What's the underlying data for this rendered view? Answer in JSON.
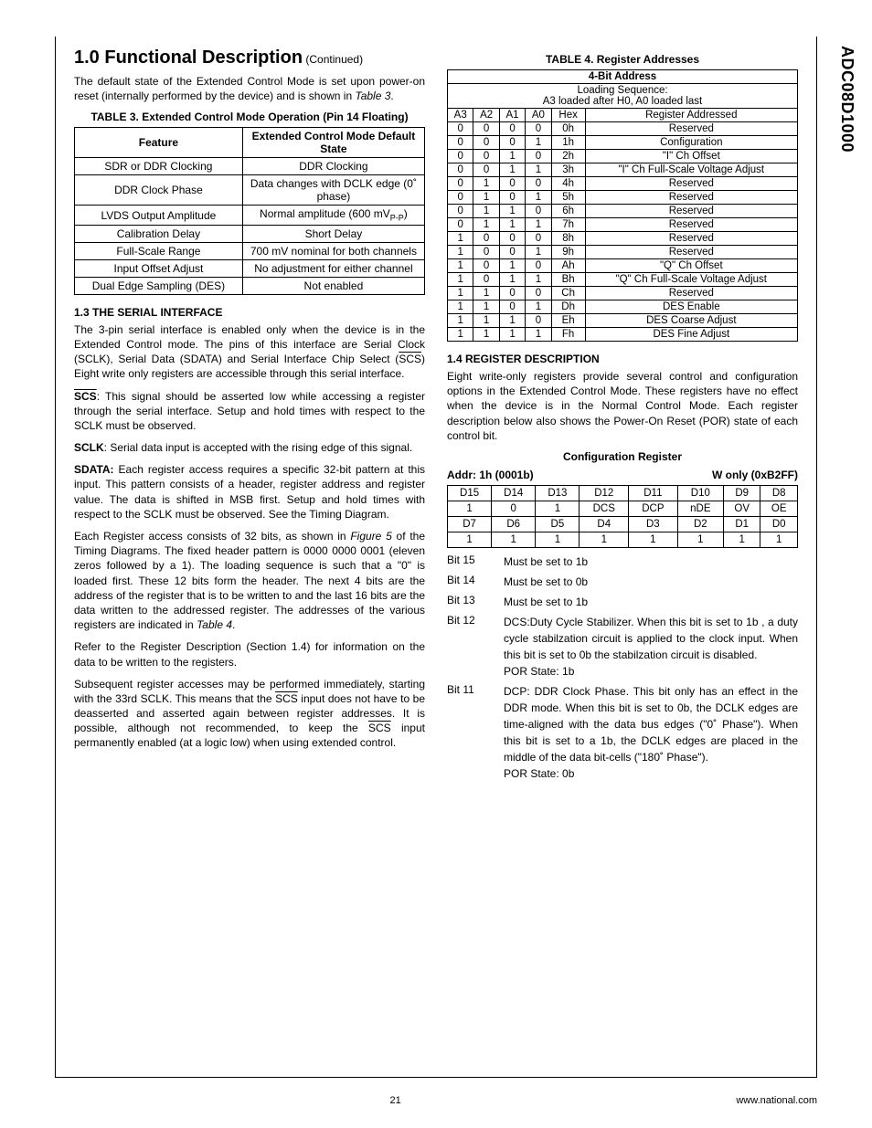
{
  "side_label": "ADC08D1000",
  "section": {
    "number_title": "1.0 Functional Description",
    "continued": "(Continued)"
  },
  "intro_para": "The default state of the Extended Control Mode is set upon power-on reset (internally performed by the device) and is shown in ",
  "intro_ref": "Table 3",
  "intro_end": ".",
  "table3": {
    "caption": "TABLE 3. Extended Control Mode Operation (Pin 14 Floating)",
    "head_feature": "Feature",
    "head_default": "Extended Control Mode Default State",
    "rows": [
      {
        "f": "SDR or DDR Clocking",
        "v": "DDR Clocking"
      },
      {
        "f": "DDR Clock Phase",
        "v": "Data changes with DCLK edge (0˚ phase)"
      },
      {
        "f": "LVDS Output Amplitude",
        "v": "Normal amplitude (600 mV"
      },
      {
        "f_lvds_suffix": "P-P",
        "f_lvds_end": ")"
      },
      {
        "f": "Calibration Delay",
        "v": "Short Delay"
      },
      {
        "f": "Full-Scale Range",
        "v": "700 mV nominal for both channels"
      },
      {
        "f": "Input Offset Adjust",
        "v": "No adjustment for either channel"
      },
      {
        "f": "Dual Edge Sampling (DES)",
        "v": "Not enabled"
      }
    ]
  },
  "sec13": {
    "title": "1.3 THE SERIAL INTERFACE",
    "p1a": "The 3-pin serial interface is enabled only when the device is in the Extended Control mode. The pins of this interface are Serial Clock (SCLK), Serial Data (SDATA) and Serial Interface Chip Select (",
    "scs": "SCS",
    "p1b": ") Eight write only registers are accessible through this serial interface.",
    "p2a_bold": "SCS",
    "p2a": ": This signal should be asserted low while accessing a register through the serial interface. Setup and hold times with respect to the SCLK must be observed.",
    "p3_bold": "SCLK",
    "p3": ": Serial data input is accepted with the rising edge of this signal.",
    "p4_bold": "SDATA:",
    "p4": " Each register access requires a specific 32-bit pattern at this input. This pattern consists of a header, register address and register value. The data is shifted in MSB first. Setup and hold times with respect to the SCLK must be observed. See the Timing Diagram.",
    "p5a": "Each Register access consists of 32 bits, as shown in ",
    "p5_ref": "Figure 5",
    "p5b": " of the Timing Diagrams. The fixed header pattern is 0000 0000 0001 (eleven zeros followed by a 1). The loading sequence is such that a \"0\" is loaded first. These 12 bits form the header. The next 4 bits are the address of the register that is to be written to and the last 16 bits are the data written to the addressed register. The addresses of the various registers are indicated in ",
    "p5_ref2": "Table 4",
    "p5c": ".",
    "p6": "Refer to the Register Description (Section 1.4) for information on the data to be written to the registers.",
    "p7a": "Subsequent register accesses may be performed immediately, starting with the 33rd SCLK. This means that the ",
    "p7b": " input does not have to be deasserted and asserted again between register addresses. It is possible, although not recommended, to keep the ",
    "p7c": " input permanently enabled (at a logic low) when using extended control."
  },
  "table4": {
    "caption": "TABLE 4. Register Addresses",
    "head_4bit": "4-Bit Address",
    "loading1": "Loading Sequence:",
    "loading2": "A3 loaded after H0, A0 loaded last",
    "cols": [
      "A3",
      "A2",
      "A1",
      "A0",
      "Hex",
      "Register Addressed"
    ],
    "rows": [
      [
        "0",
        "0",
        "0",
        "0",
        "0h",
        "Reserved"
      ],
      [
        "0",
        "0",
        "0",
        "1",
        "1h",
        "Configuration"
      ],
      [
        "0",
        "0",
        "1",
        "0",
        "2h",
        "\"I\" Ch Offset"
      ],
      [
        "0",
        "0",
        "1",
        "1",
        "3h",
        "\"I\" Ch Full-Scale Voltage Adjust"
      ],
      [
        "0",
        "1",
        "0",
        "0",
        "4h",
        "Reserved"
      ],
      [
        "0",
        "1",
        "0",
        "1",
        "5h",
        "Reserved"
      ],
      [
        "0",
        "1",
        "1",
        "0",
        "6h",
        "Reserved"
      ],
      [
        "0",
        "1",
        "1",
        "1",
        "7h",
        "Reserved"
      ],
      [
        "1",
        "0",
        "0",
        "0",
        "8h",
        "Reserved"
      ],
      [
        "1",
        "0",
        "0",
        "1",
        "9h",
        "Reserved"
      ],
      [
        "1",
        "0",
        "1",
        "0",
        "Ah",
        "\"Q\" Ch Offset"
      ],
      [
        "1",
        "0",
        "1",
        "1",
        "Bh",
        "\"Q\" Ch Full-Scale Voltage Adjust"
      ],
      [
        "1",
        "1",
        "0",
        "0",
        "Ch",
        "Reserved"
      ],
      [
        "1",
        "1",
        "0",
        "1",
        "Dh",
        "DES Enable"
      ],
      [
        "1",
        "1",
        "1",
        "0",
        "Eh",
        "DES Coarse Adjust"
      ],
      [
        "1",
        "1",
        "1",
        "1",
        "Fh",
        "DES Fine Adjust"
      ]
    ]
  },
  "sec14": {
    "title": "1.4 REGISTER DESCRIPTION",
    "p1": "Eight write-only registers provide several control and configuration options in the Extended Control Mode. These registers have no effect when the device is in the Normal Control Mode. Each register description below also shows the Power-On Reset (POR) state of each control bit."
  },
  "cfg": {
    "title": "Configuration Register",
    "addr": "Addr: 1h (0001b)",
    "wonly": "W only (0xB2FF)",
    "row1": [
      "D15",
      "D14",
      "D13",
      "D12",
      "D11",
      "D10",
      "D9",
      "D8"
    ],
    "row2": [
      "1",
      "0",
      "1",
      "DCS",
      "DCP",
      "nDE",
      "OV",
      "OE"
    ],
    "row3": [
      "D7",
      "D6",
      "D5",
      "D4",
      "D3",
      "D2",
      "D1",
      "D0"
    ],
    "row4": [
      "1",
      "1",
      "1",
      "1",
      "1",
      "1",
      "1",
      "1"
    ]
  },
  "bits": [
    {
      "label": "Bit 15",
      "desc": "Must be set to 1b"
    },
    {
      "label": "Bit 14",
      "desc": "Must be set to 0b"
    },
    {
      "label": "Bit 13",
      "desc": "Must be set to 1b"
    },
    {
      "label": "Bit 12",
      "desc": "DCS:Duty Cycle Stabilizer. When this bit is set to 1b , a duty cycle stabilzation circuit is applied to the clock input. When this bit is set to 0b the stabilzation circuit is disabled.",
      "por": "POR State: 1b"
    },
    {
      "label": "Bit 11",
      "desc": "DCP: DDR Clock Phase. This bit only has an effect in the DDR mode. When this bit is set to 0b, the DCLK edges are time-aligned with the data bus edges (\"0˚ Phase\"). When this bit is set to a 1b, the DCLK edges are placed in the middle of the data bit-cells (\"180˚ Phase\").",
      "por": "POR State: 0b"
    }
  ],
  "footer": {
    "page": "21",
    "url": "www.national.com"
  }
}
